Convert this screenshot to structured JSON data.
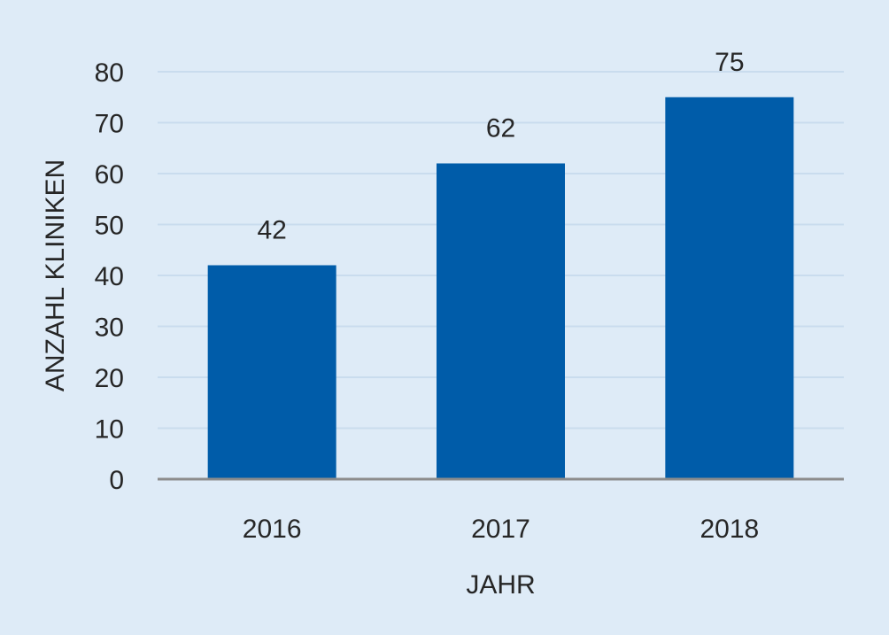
{
  "chart_data": {
    "type": "bar",
    "categories": [
      "2016",
      "2017",
      "2018"
    ],
    "values": [
      42,
      62,
      75
    ],
    "data_labels": [
      "42",
      "62",
      "75"
    ],
    "xlabel": "JAHR",
    "ylabel": "ANZAHL KLINIKEN",
    "ylim": [
      0,
      80
    ],
    "yticks": [
      "0",
      "10",
      "20",
      "30",
      "40",
      "50",
      "60",
      "70",
      "80"
    ],
    "grid": true,
    "legend": "none",
    "colors": {
      "bar": "#005ca9",
      "background": "#deebf7",
      "gridline": "#c9dcee",
      "axis": "#8c8c8c",
      "text": "#262626"
    }
  }
}
